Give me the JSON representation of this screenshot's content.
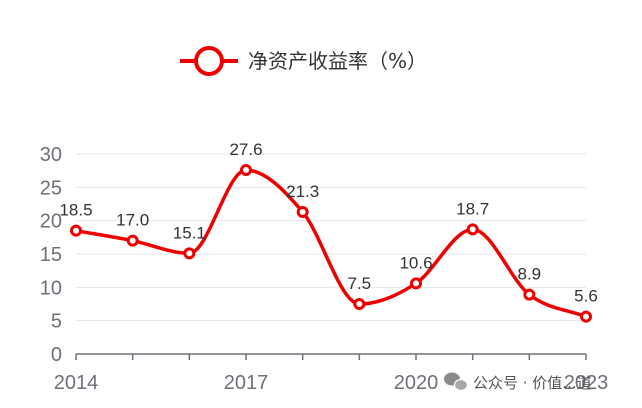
{
  "chart_data": {
    "type": "line",
    "legend": {
      "name": "净资产收益率（%）",
      "position": "top-center"
    },
    "x": [
      "2014",
      "2015",
      "2016",
      "2017",
      "2018",
      "2019",
      "2020",
      "2021",
      "2022",
      "2023"
    ],
    "x_tick_labels": [
      "2014",
      "2017",
      "2020",
      "2023"
    ],
    "series": [
      {
        "name": "净资产收益率（%）",
        "values": [
          18.5,
          17.0,
          15.1,
          27.6,
          21.3,
          7.5,
          10.6,
          18.7,
          8.9,
          5.6
        ]
      }
    ],
    "ylim": [
      0,
      30
    ],
    "y_ticks": [
      0,
      5,
      10,
      15,
      20,
      25,
      30
    ],
    "grid": true,
    "smooth": true,
    "data_labels": true,
    "colors": {
      "series": "#ee0000",
      "grid": "#e0e6f1",
      "axis": "#6e7079"
    }
  },
  "watermark": {
    "text": "公众号 · 价值...道",
    "icon": "wechat-icon"
  }
}
